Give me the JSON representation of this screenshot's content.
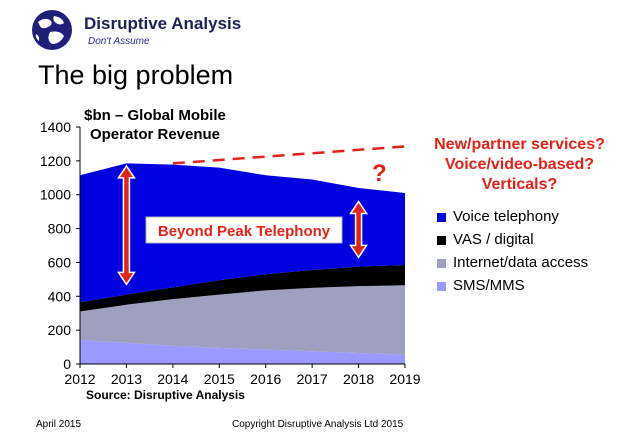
{
  "header": {
    "brand_name": "Disruptive Analysis",
    "tagline": "Don't Assume",
    "title": "The big problem"
  },
  "chart_data": {
    "type": "area",
    "title": "$bn – Global Mobile Operator Revenue",
    "stacked": true,
    "x": [
      2012,
      2013,
      2014,
      2015,
      2016,
      2017,
      2018,
      2019
    ],
    "ylim": [
      0,
      1400
    ],
    "yticks": [
      0,
      200,
      400,
      600,
      800,
      1000,
      1200,
      1400
    ],
    "grid": false,
    "legend_position": "right",
    "series": [
      {
        "name": "SMS/MMS",
        "color": "#9999ff",
        "values": [
          140,
          125,
          108,
          95,
          85,
          75,
          65,
          55
        ]
      },
      {
        "name": "Internet/data access",
        "color": "#9f9fbf",
        "values": [
          170,
          225,
          275,
          315,
          350,
          375,
          395,
          410
        ]
      },
      {
        "name": "VAS / digital",
        "color": "#000000",
        "values": [
          55,
          60,
          70,
          85,
          95,
          105,
          115,
          120
        ]
      },
      {
        "name": "Voice telephony",
        "color": "#0000e0",
        "values": [
          750,
          775,
          725,
          665,
          585,
          535,
          465,
          425
        ]
      }
    ],
    "legend_order": [
      "Voice telephony",
      "VAS / digital",
      "Internet/data access",
      "SMS/MMS"
    ],
    "annotations": {
      "label": "Beyond Peak Telephony",
      "question": "New/partner services? Voice/video-based? Verticals?",
      "question_mark": "?",
      "trend_line": {
        "from": [
          2014,
          1185
        ],
        "to": [
          2019,
          1285
        ]
      },
      "arrows": [
        {
          "x": 2013,
          "y_from": 470,
          "y_to": 1170
        },
        {
          "x": 2018,
          "y_from": 630,
          "y_to": 960
        }
      ],
      "accent_color": "#e2231a"
    },
    "source": "Source: Disruptive Analysis"
  },
  "footer": {
    "date": "April 2015",
    "copyright": "Copyright Disruptive Analysis Ltd 2015"
  }
}
